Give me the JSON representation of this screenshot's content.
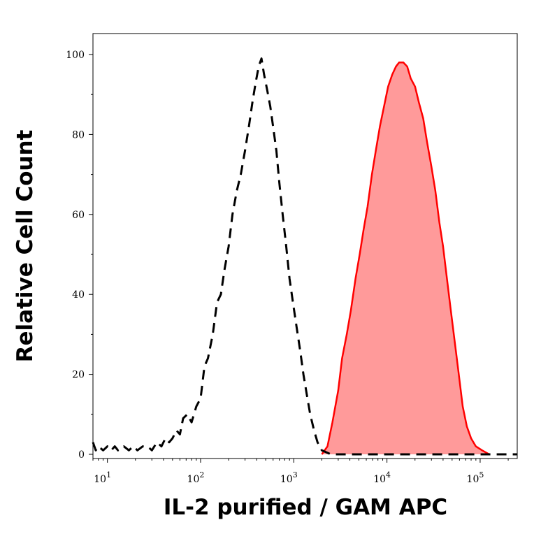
{
  "chart_data": {
    "type": "area",
    "title": "",
    "xlabel": "IL-2 purified / GAM APC",
    "ylabel": "Relative Cell Count",
    "x_scale": "log",
    "xlim": [
      7,
      250000
    ],
    "ylim": [
      0,
      100
    ],
    "x_ticks": [
      {
        "value": 10,
        "base": "10",
        "exp": "1"
      },
      {
        "value": 100,
        "base": "10",
        "exp": "2"
      },
      {
        "value": 1000,
        "base": "10",
        "exp": "3"
      },
      {
        "value": 10000,
        "base": "10",
        "exp": "4"
      },
      {
        "value": 100000,
        "base": "10",
        "exp": "5"
      }
    ],
    "y_ticks": [
      0,
      20,
      40,
      60,
      80,
      100
    ],
    "y_tick_labels": [
      "0",
      "20",
      "40",
      "60",
      "80",
      "100"
    ],
    "grid": false,
    "series": [
      {
        "style": "dashed-black",
        "color": "#000000",
        "points": [
          [
            7,
            3
          ],
          [
            7.5,
            1
          ],
          [
            8,
            2
          ],
          [
            9,
            1
          ],
          [
            10,
            2
          ],
          [
            11,
            1
          ],
          [
            12,
            2
          ],
          [
            13,
            1
          ],
          [
            15,
            2
          ],
          [
            17,
            1
          ],
          [
            19,
            2
          ],
          [
            21,
            1
          ],
          [
            24,
            2
          ],
          [
            27,
            2
          ],
          [
            30,
            1
          ],
          [
            34,
            3
          ],
          [
            38,
            2
          ],
          [
            42,
            4
          ],
          [
            46,
            3
          ],
          [
            50,
            4
          ],
          [
            55,
            6
          ],
          [
            60,
            5
          ],
          [
            65,
            9
          ],
          [
            72,
            10
          ],
          [
            80,
            8
          ],
          [
            90,
            12
          ],
          [
            100,
            14
          ],
          [
            110,
            22
          ],
          [
            120,
            24
          ],
          [
            135,
            30
          ],
          [
            150,
            38
          ],
          [
            165,
            40
          ],
          [
            180,
            46
          ],
          [
            200,
            52
          ],
          [
            220,
            60
          ],
          [
            245,
            66
          ],
          [
            270,
            70
          ],
          [
            300,
            76
          ],
          [
            330,
            82
          ],
          [
            360,
            88
          ],
          [
            390,
            93
          ],
          [
            420,
            97
          ],
          [
            450,
            99
          ],
          [
            480,
            95
          ],
          [
            520,
            91
          ],
          [
            560,
            87
          ],
          [
            600,
            82
          ],
          [
            650,
            76
          ],
          [
            700,
            68
          ],
          [
            760,
            60
          ],
          [
            830,
            52
          ],
          [
            900,
            44
          ],
          [
            980,
            38
          ],
          [
            1070,
            32
          ],
          [
            1170,
            26
          ],
          [
            1270,
            20
          ],
          [
            1380,
            15
          ],
          [
            1500,
            10
          ],
          [
            1650,
            6
          ],
          [
            1800,
            3
          ],
          [
            2000,
            1
          ],
          [
            2500,
            0
          ],
          [
            5000,
            0
          ],
          [
            20000,
            0
          ],
          [
            100000,
            0
          ],
          [
            250000,
            0
          ]
        ]
      },
      {
        "style": "filled-red",
        "color": "#ff0000",
        "fill": "#ff9a9a",
        "points": [
          [
            2000,
            0
          ],
          [
            2300,
            2
          ],
          [
            2600,
            8
          ],
          [
            3000,
            16
          ],
          [
            3300,
            24
          ],
          [
            3700,
            30
          ],
          [
            4100,
            36
          ],
          [
            4600,
            44
          ],
          [
            5100,
            50
          ],
          [
            5600,
            56
          ],
          [
            6200,
            62
          ],
          [
            6900,
            70
          ],
          [
            7600,
            76
          ],
          [
            8400,
            82
          ],
          [
            9300,
            87
          ],
          [
            10300,
            92
          ],
          [
            11400,
            95
          ],
          [
            12500,
            97
          ],
          [
            13500,
            98
          ],
          [
            15000,
            98
          ],
          [
            16500,
            97
          ],
          [
            18000,
            94
          ],
          [
            20000,
            92
          ],
          [
            22000,
            88
          ],
          [
            24500,
            84
          ],
          [
            27000,
            78
          ],
          [
            30000,
            72
          ],
          [
            33000,
            66
          ],
          [
            36500,
            58
          ],
          [
            40000,
            52
          ],
          [
            44000,
            44
          ],
          [
            48500,
            36
          ],
          [
            53500,
            28
          ],
          [
            59000,
            20
          ],
          [
            65000,
            12
          ],
          [
            72000,
            7
          ],
          [
            80000,
            4
          ],
          [
            90000,
            2
          ],
          [
            105000,
            1
          ],
          [
            125000,
            0
          ]
        ]
      }
    ]
  }
}
